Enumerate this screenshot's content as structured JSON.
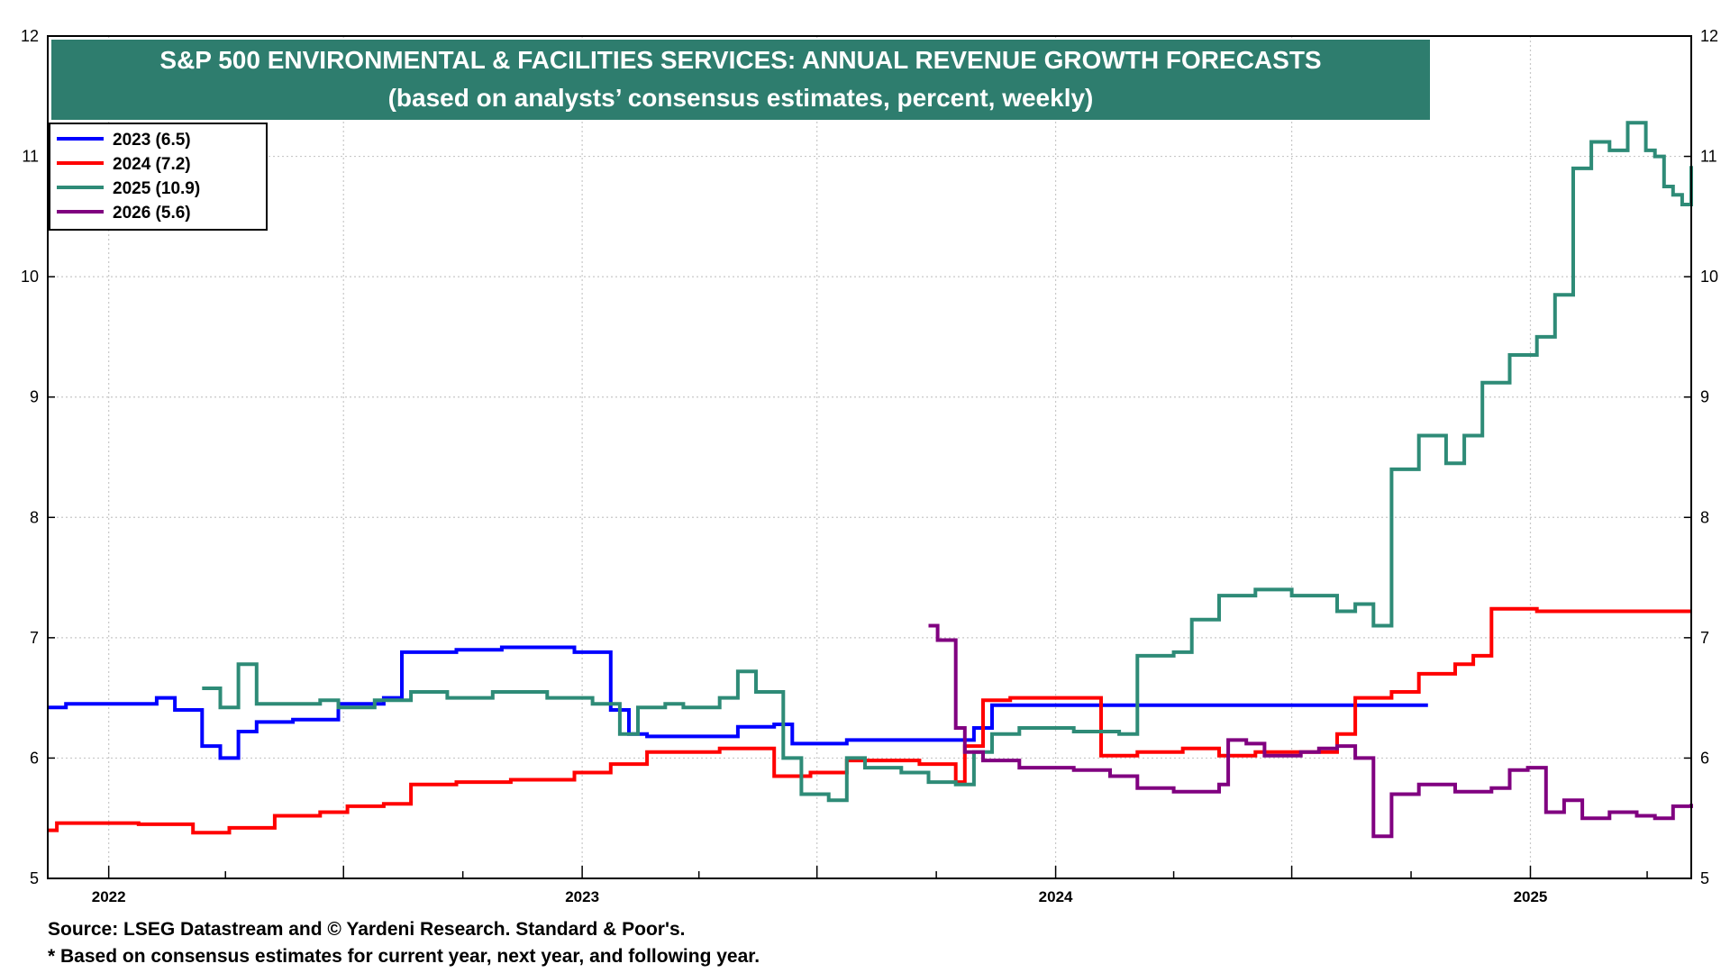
{
  "chart_data": {
    "type": "line",
    "title": "S&P 500 ENVIRONMENTAL & FACILITIES SERVICES: ANNUAL REVENUE GROWTH FORECASTS",
    "subtitle": "(based on analysts’ consensus estimates, percent, weekly)",
    "xlabel": "",
    "ylabel": "",
    "ylim": [
      5,
      12
    ],
    "yticks": [
      "5",
      "6",
      "7",
      "8",
      "9",
      "10",
      "11",
      "12"
    ],
    "xlim": [
      "2021-11-15",
      "2025-05-05"
    ],
    "x_year_labels": [
      {
        "label": "2022",
        "at": "2022-01-01"
      },
      {
        "label": "2023",
        "at": "2023-01-01"
      },
      {
        "label": "2024",
        "at": "2024-01-01"
      },
      {
        "label": "2025",
        "at": "2025-01-01"
      }
    ],
    "grid": true,
    "legend_position": "top-left",
    "series": [
      {
        "name": "2023 (6.5)",
        "color": "#0000ff",
        "points": [
          [
            "2021-11-15",
            6.42
          ],
          [
            "2021-11-29",
            6.45
          ],
          [
            "2022-01-24",
            6.45
          ],
          [
            "2022-02-07",
            6.5
          ],
          [
            "2022-02-21",
            6.4
          ],
          [
            "2022-03-14",
            6.1
          ],
          [
            "2022-03-28",
            6.0
          ],
          [
            "2022-04-11",
            6.22
          ],
          [
            "2022-04-25",
            6.3
          ],
          [
            "2022-05-23",
            6.32
          ],
          [
            "2022-06-27",
            6.45
          ],
          [
            "2022-08-01",
            6.5
          ],
          [
            "2022-08-15",
            6.88
          ],
          [
            "2022-09-26",
            6.9
          ],
          [
            "2022-10-31",
            6.92
          ],
          [
            "2022-12-05",
            6.92
          ],
          [
            "2022-12-26",
            6.88
          ],
          [
            "2023-01-23",
            6.4
          ],
          [
            "2023-02-06",
            6.2
          ],
          [
            "2023-02-20",
            6.18
          ],
          [
            "2023-03-20",
            6.18
          ],
          [
            "2023-04-17",
            6.18
          ],
          [
            "2023-05-01",
            6.26
          ],
          [
            "2023-05-29",
            6.28
          ],
          [
            "2023-06-12",
            6.12
          ],
          [
            "2023-07-03",
            6.12
          ],
          [
            "2023-07-24",
            6.15
          ],
          [
            "2023-09-04",
            6.15
          ],
          [
            "2023-10-16",
            6.15
          ],
          [
            "2023-10-30",
            6.25
          ],
          [
            "2023-11-13",
            6.44
          ],
          [
            "2024-02-05",
            6.44
          ],
          [
            "2024-06-03",
            6.44
          ],
          [
            "2024-10-14",
            6.44
          ]
        ]
      },
      {
        "name": "2024 (7.2)",
        "color": "#ff0000",
        "points": [
          [
            "2021-11-15",
            5.4
          ],
          [
            "2021-11-22",
            5.46
          ],
          [
            "2022-01-10",
            5.46
          ],
          [
            "2022-01-24",
            5.45
          ],
          [
            "2022-03-07",
            5.38
          ],
          [
            "2022-04-04",
            5.42
          ],
          [
            "2022-05-09",
            5.52
          ],
          [
            "2022-06-13",
            5.55
          ],
          [
            "2022-07-04",
            5.6
          ],
          [
            "2022-08-01",
            5.62
          ],
          [
            "2022-08-22",
            5.78
          ],
          [
            "2022-09-26",
            5.8
          ],
          [
            "2022-11-07",
            5.82
          ],
          [
            "2022-12-26",
            5.88
          ],
          [
            "2023-01-23",
            5.95
          ],
          [
            "2023-02-20",
            6.05
          ],
          [
            "2023-03-20",
            6.05
          ],
          [
            "2023-04-17",
            6.08
          ],
          [
            "2023-05-15",
            6.08
          ],
          [
            "2023-05-29",
            5.85
          ],
          [
            "2023-06-26",
            5.88
          ],
          [
            "2023-07-24",
            5.98
          ],
          [
            "2023-08-28",
            5.98
          ],
          [
            "2023-09-18",
            5.95
          ],
          [
            "2023-10-09",
            5.95
          ],
          [
            "2023-10-16",
            5.8
          ],
          [
            "2023-10-23",
            6.1
          ],
          [
            "2023-11-06",
            6.48
          ],
          [
            "2023-11-27",
            6.5
          ],
          [
            "2024-01-15",
            6.5
          ],
          [
            "2024-02-05",
            6.02
          ],
          [
            "2024-03-04",
            6.05
          ],
          [
            "2024-04-08",
            6.08
          ],
          [
            "2024-05-06",
            6.02
          ],
          [
            "2024-06-03",
            6.05
          ],
          [
            "2024-07-08",
            6.05
          ],
          [
            "2024-08-05",
            6.2
          ],
          [
            "2024-08-19",
            6.5
          ],
          [
            "2024-09-16",
            6.55
          ],
          [
            "2024-10-07",
            6.7
          ],
          [
            "2024-11-04",
            6.78
          ],
          [
            "2024-11-18",
            6.85
          ],
          [
            "2024-12-02",
            7.24
          ],
          [
            "2025-01-06",
            7.22
          ],
          [
            "2025-05-05",
            7.22
          ]
        ]
      },
      {
        "name": "2025 (10.9)",
        "color": "#2e8b77",
        "points": [
          [
            "2022-03-14",
            6.58
          ],
          [
            "2022-03-28",
            6.42
          ],
          [
            "2022-04-11",
            6.78
          ],
          [
            "2022-04-25",
            6.45
          ],
          [
            "2022-06-13",
            6.48
          ],
          [
            "2022-06-27",
            6.42
          ],
          [
            "2022-07-25",
            6.48
          ],
          [
            "2022-08-22",
            6.55
          ],
          [
            "2022-09-19",
            6.5
          ],
          [
            "2022-10-24",
            6.55
          ],
          [
            "2022-12-05",
            6.5
          ],
          [
            "2023-01-09",
            6.45
          ],
          [
            "2023-01-30",
            6.2
          ],
          [
            "2023-02-13",
            6.42
          ],
          [
            "2023-03-06",
            6.45
          ],
          [
            "2023-03-20",
            6.42
          ],
          [
            "2023-04-17",
            6.5
          ],
          [
            "2023-05-01",
            6.72
          ],
          [
            "2023-05-15",
            6.55
          ],
          [
            "2023-06-05",
            6.0
          ],
          [
            "2023-06-19",
            5.7
          ],
          [
            "2023-07-10",
            5.65
          ],
          [
            "2023-07-24",
            6.0
          ],
          [
            "2023-08-07",
            5.92
          ],
          [
            "2023-09-04",
            5.88
          ],
          [
            "2023-09-25",
            5.8
          ],
          [
            "2023-10-16",
            5.78
          ],
          [
            "2023-10-30",
            6.05
          ],
          [
            "2023-11-13",
            6.2
          ],
          [
            "2023-12-04",
            6.25
          ],
          [
            "2024-01-15",
            6.22
          ],
          [
            "2024-02-19",
            6.2
          ],
          [
            "2024-03-04",
            6.85
          ],
          [
            "2024-04-01",
            6.88
          ],
          [
            "2024-04-15",
            7.15
          ],
          [
            "2024-05-06",
            7.35
          ],
          [
            "2024-06-03",
            7.4
          ],
          [
            "2024-07-01",
            7.35
          ],
          [
            "2024-08-05",
            7.22
          ],
          [
            "2024-08-19",
            7.28
          ],
          [
            "2024-09-02",
            7.1
          ],
          [
            "2024-09-16",
            8.4
          ],
          [
            "2024-10-07",
            8.68
          ],
          [
            "2024-10-28",
            8.45
          ],
          [
            "2024-11-11",
            8.68
          ],
          [
            "2024-11-25",
            9.12
          ],
          [
            "2024-12-16",
            9.35
          ],
          [
            "2025-01-06",
            9.5
          ],
          [
            "2025-01-20",
            9.85
          ],
          [
            "2025-02-03",
            10.9
          ],
          [
            "2025-02-17",
            11.12
          ],
          [
            "2025-03-03",
            11.05
          ],
          [
            "2025-03-17",
            11.28
          ],
          [
            "2025-03-31",
            11.05
          ],
          [
            "2025-04-07",
            11.0
          ],
          [
            "2025-04-14",
            10.75
          ],
          [
            "2025-04-21",
            10.68
          ],
          [
            "2025-04-28",
            10.6
          ],
          [
            "2025-05-05",
            10.92
          ]
        ]
      },
      {
        "name": "2026 (5.6)",
        "color": "#800080",
        "points": [
          [
            "2023-09-25",
            7.1
          ],
          [
            "2023-10-02",
            6.98
          ],
          [
            "2023-10-16",
            6.25
          ],
          [
            "2023-10-23",
            6.05
          ],
          [
            "2023-11-06",
            5.98
          ],
          [
            "2023-12-04",
            5.92
          ],
          [
            "2024-01-15",
            5.9
          ],
          [
            "2024-02-12",
            5.85
          ],
          [
            "2024-03-04",
            5.75
          ],
          [
            "2024-04-01",
            5.72
          ],
          [
            "2024-05-06",
            5.78
          ],
          [
            "2024-05-13",
            6.15
          ],
          [
            "2024-05-27",
            6.12
          ],
          [
            "2024-06-10",
            6.02
          ],
          [
            "2024-07-08",
            6.05
          ],
          [
            "2024-07-22",
            6.08
          ],
          [
            "2024-08-05",
            6.1
          ],
          [
            "2024-08-19",
            6.0
          ],
          [
            "2024-09-02",
            5.35
          ],
          [
            "2024-09-16",
            5.7
          ],
          [
            "2024-10-07",
            5.78
          ],
          [
            "2024-11-04",
            5.72
          ],
          [
            "2024-12-02",
            5.75
          ],
          [
            "2024-12-16",
            5.9
          ],
          [
            "2024-12-30",
            5.92
          ],
          [
            "2025-01-13",
            5.55
          ],
          [
            "2025-01-27",
            5.65
          ],
          [
            "2025-02-10",
            5.5
          ],
          [
            "2025-03-03",
            5.55
          ],
          [
            "2025-03-24",
            5.52
          ],
          [
            "2025-04-07",
            5.5
          ],
          [
            "2025-04-21",
            5.6
          ],
          [
            "2025-05-05",
            5.62
          ]
        ]
      }
    ]
  },
  "footnotes": {
    "source": "Source: LSEG Datastream and © Yardeni Research. Standard & Poor's.",
    "note": "* Based on consensus estimates for current year, next year, and following year."
  },
  "colors": {
    "title_bg": "#2e7d6e",
    "title_text": "#ffffff",
    "grid": "#c8c8c8",
    "axis": "#000000"
  }
}
